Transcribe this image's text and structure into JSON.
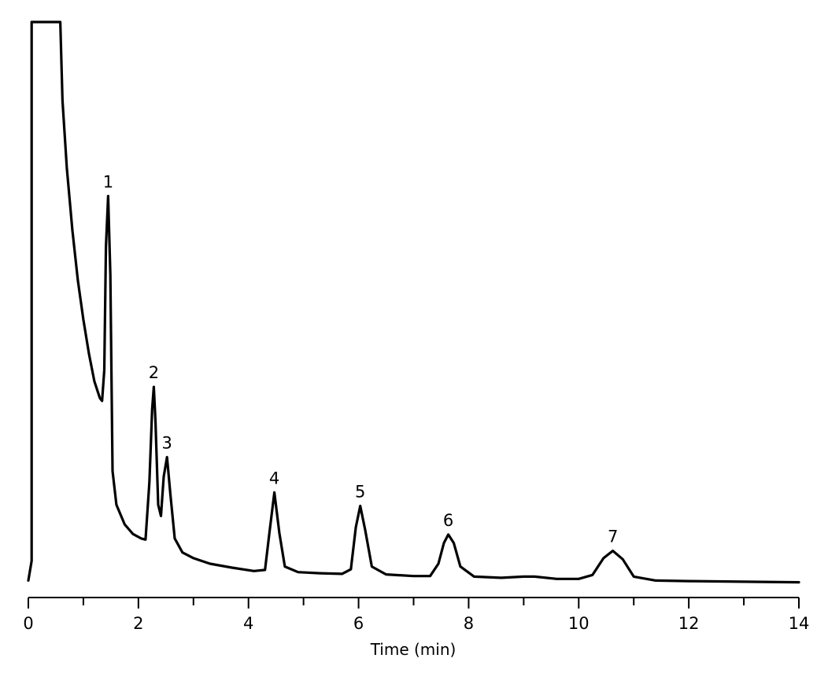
{
  "chart_data": {
    "type": "line",
    "title": "",
    "xlabel": "Time (min)",
    "ylabel": "",
    "xlim": [
      0,
      14
    ],
    "x_major_ticks": [
      0,
      2,
      4,
      6,
      8,
      10,
      12,
      14
    ],
    "x_minor_ticks": [
      1,
      3,
      5,
      7,
      9,
      11,
      13
    ],
    "tick_labels": [
      "0",
      "2",
      "4",
      "6",
      "8",
      "10",
      "12",
      "14"
    ],
    "y_axis_shown": false,
    "grid": false,
    "peaks": [
      {
        "label": "1",
        "time": 1.45
      },
      {
        "label": "2",
        "time": 2.28
      },
      {
        "label": "3",
        "time": 2.52
      },
      {
        "label": "4",
        "time": 4.47
      },
      {
        "label": "5",
        "time": 6.03
      },
      {
        "label": "6",
        "time": 7.63
      },
      {
        "label": "7",
        "time": 10.62
      }
    ],
    "series": [
      {
        "points": [
          [
            0.0,
            0.005
          ],
          [
            0.06,
            0.04
          ],
          [
            0.06,
            1.0
          ],
          [
            0.58,
            1.0
          ],
          [
            0.62,
            0.86
          ],
          [
            0.7,
            0.74
          ],
          [
            0.8,
            0.63
          ],
          [
            0.9,
            0.54
          ],
          [
            1.0,
            0.47
          ],
          [
            1.1,
            0.41
          ],
          [
            1.2,
            0.36
          ],
          [
            1.3,
            0.33
          ],
          [
            1.34,
            0.325
          ],
          [
            1.38,
            0.38
          ],
          [
            1.41,
            0.6
          ],
          [
            1.45,
            0.69
          ],
          [
            1.49,
            0.55
          ],
          [
            1.53,
            0.2
          ],
          [
            1.6,
            0.14
          ],
          [
            1.75,
            0.105
          ],
          [
            1.9,
            0.088
          ],
          [
            2.05,
            0.08
          ],
          [
            2.13,
            0.078
          ],
          [
            2.2,
            0.18
          ],
          [
            2.25,
            0.31
          ],
          [
            2.28,
            0.35
          ],
          [
            2.31,
            0.29
          ],
          [
            2.36,
            0.14
          ],
          [
            2.41,
            0.12
          ],
          [
            2.46,
            0.19
          ],
          [
            2.52,
            0.225
          ],
          [
            2.58,
            0.16
          ],
          [
            2.66,
            0.08
          ],
          [
            2.8,
            0.055
          ],
          [
            3.0,
            0.045
          ],
          [
            3.3,
            0.035
          ],
          [
            3.7,
            0.028
          ],
          [
            4.1,
            0.022
          ],
          [
            4.3,
            0.024
          ],
          [
            4.38,
            0.09
          ],
          [
            4.47,
            0.162
          ],
          [
            4.56,
            0.09
          ],
          [
            4.66,
            0.03
          ],
          [
            4.9,
            0.02
          ],
          [
            5.3,
            0.018
          ],
          [
            5.7,
            0.017
          ],
          [
            5.86,
            0.025
          ],
          [
            5.95,
            0.1
          ],
          [
            6.03,
            0.138
          ],
          [
            6.12,
            0.095
          ],
          [
            6.24,
            0.03
          ],
          [
            6.5,
            0.016
          ],
          [
            7.0,
            0.013
          ],
          [
            7.3,
            0.013
          ],
          [
            7.45,
            0.035
          ],
          [
            7.55,
            0.072
          ],
          [
            7.63,
            0.087
          ],
          [
            7.73,
            0.072
          ],
          [
            7.85,
            0.03
          ],
          [
            8.1,
            0.012
          ],
          [
            8.6,
            0.01
          ],
          [
            9.0,
            0.012
          ],
          [
            9.2,
            0.012
          ],
          [
            9.6,
            0.008
          ],
          [
            10.0,
            0.008
          ],
          [
            10.25,
            0.015
          ],
          [
            10.45,
            0.045
          ],
          [
            10.62,
            0.058
          ],
          [
            10.8,
            0.043
          ],
          [
            11.0,
            0.012
          ],
          [
            11.4,
            0.005
          ],
          [
            12.0,
            0.004
          ],
          [
            13.0,
            0.003
          ],
          [
            14.0,
            0.002
          ]
        ]
      }
    ]
  }
}
